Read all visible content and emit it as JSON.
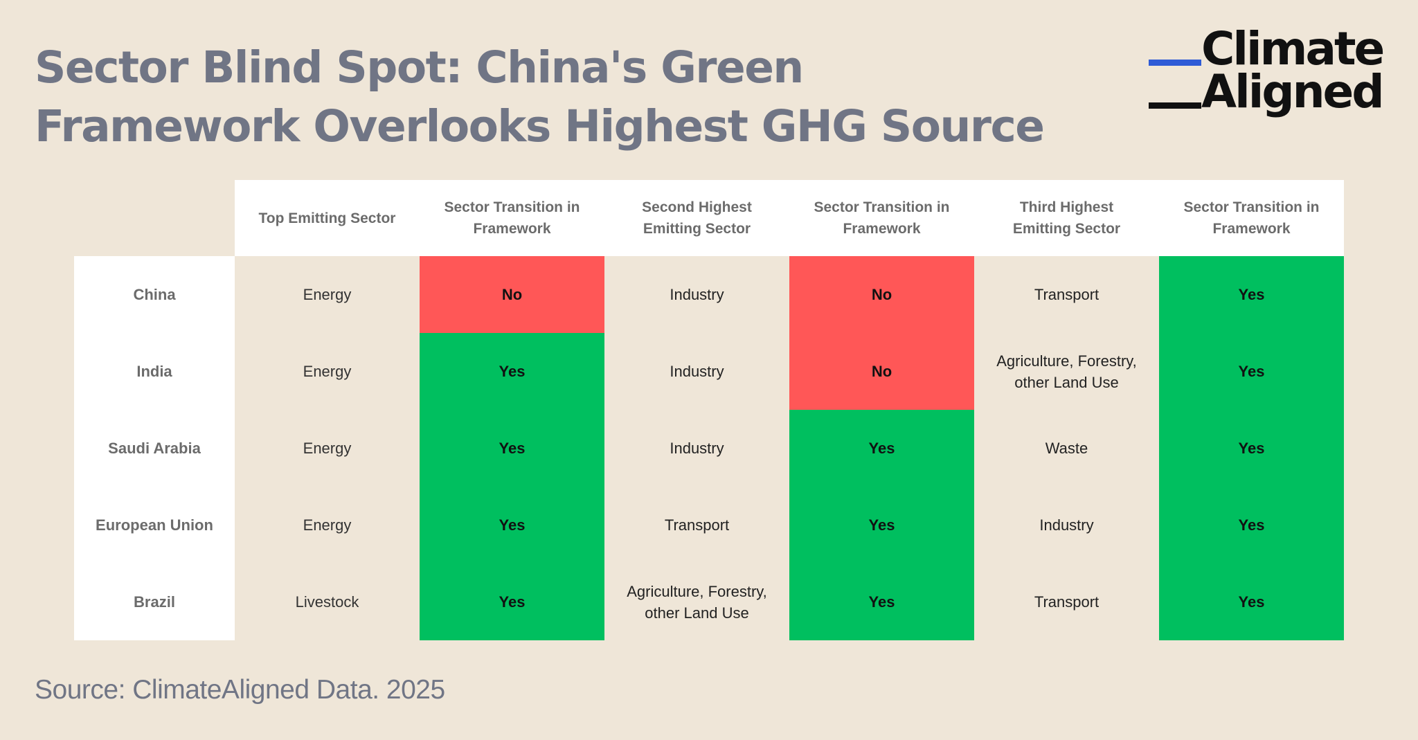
{
  "title": "Sector Blind Spot: China's Green Framework Overlooks Highest GHG Source",
  "logo": {
    "line1": "Climate",
    "line2": "Aligned",
    "colors": {
      "blue_bar": "#2e5bd6",
      "black_bar": "#111111"
    }
  },
  "source": "Source: ClimateAligned Data. 2025",
  "colors": {
    "background": "#efe6d8",
    "yes": "#00bf5f",
    "no": "#ff5757",
    "header_bg": "#ffffff",
    "title": "#707585"
  },
  "chart_data": {
    "type": "table",
    "columns": [
      "Top Emitting Sector",
      "Sector Transition in Framework",
      "Second Highest Emitting Sector",
      "Sector Transition in Framework",
      "Third Highest Emitting Sector",
      "Sector Transition in Framework"
    ],
    "rows": [
      {
        "country": "China",
        "cells": [
          "Energy",
          "No",
          "Industry",
          "No",
          "Transport",
          "Yes"
        ]
      },
      {
        "country": "India",
        "cells": [
          "Energy",
          "Yes",
          "Industry",
          "No",
          "Agriculture, Forestry, other Land Use",
          "Yes"
        ]
      },
      {
        "country": "Saudi Arabia",
        "cells": [
          "Energy",
          "Yes",
          "Industry",
          "Yes",
          "Waste",
          "Yes"
        ]
      },
      {
        "country": "European Union",
        "cells": [
          "Energy",
          "Yes",
          "Transport",
          "Yes",
          "Industry",
          "Yes"
        ]
      },
      {
        "country": "Brazil",
        "cells": [
          "Livestock",
          "Yes",
          "Agriculture, Forestry, other Land Use",
          "Yes",
          "Transport",
          "Yes"
        ]
      }
    ]
  }
}
